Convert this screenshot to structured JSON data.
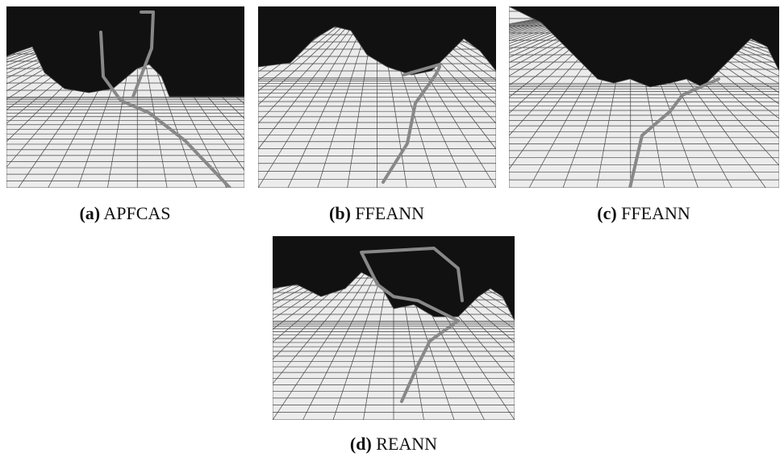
{
  "panels": [
    {
      "label": "(a)",
      "caption": "APFCAS"
    },
    {
      "label": "(b)",
      "caption": "FFEANN"
    },
    {
      "label": "(c)",
      "caption": "FFEANN"
    },
    {
      "label": "(d)",
      "caption": "REANN"
    }
  ]
}
